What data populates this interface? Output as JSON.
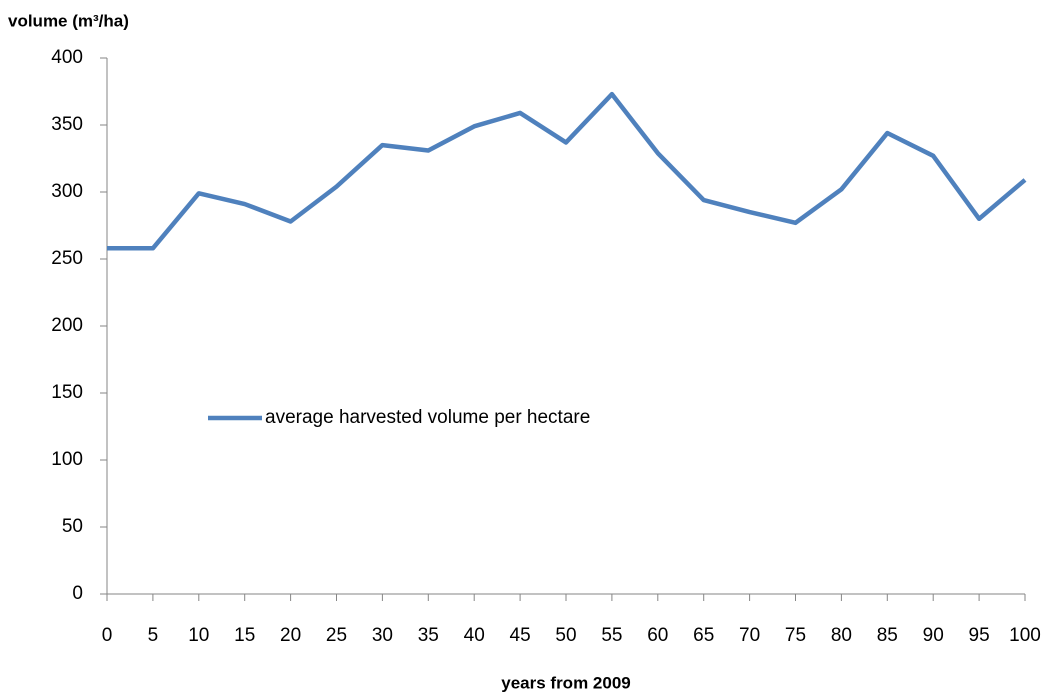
{
  "chart_data": {
    "type": "line",
    "y_label": "volume (m³/ha)",
    "x_label": "years from 2009",
    "x": [
      0,
      5,
      10,
      15,
      20,
      25,
      30,
      35,
      40,
      45,
      50,
      55,
      60,
      65,
      70,
      75,
      80,
      85,
      90,
      95,
      100
    ],
    "series": [
      {
        "name": "average harvested volume per hectare",
        "color": "#4f81bd",
        "values": [
          258,
          258,
          299,
          291,
          278,
          304,
          335,
          331,
          349,
          359,
          337,
          373,
          329,
          294,
          285,
          277,
          302,
          344,
          327,
          280,
          309
        ]
      }
    ],
    "xlim": [
      0,
      100
    ],
    "xticks": [
      0,
      5,
      10,
      15,
      20,
      25,
      30,
      35,
      40,
      45,
      50,
      55,
      60,
      65,
      70,
      75,
      80,
      85,
      90,
      95,
      100
    ],
    "ylim": [
      0,
      400
    ],
    "yticks": [
      0,
      50,
      100,
      150,
      200,
      250,
      300,
      350,
      400
    ],
    "grid": false,
    "legend": "center-left"
  }
}
